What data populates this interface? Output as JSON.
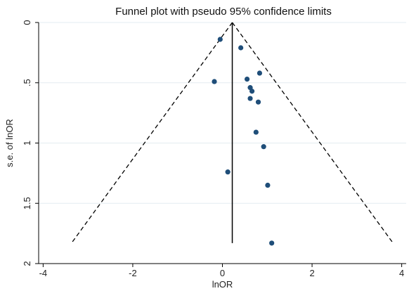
{
  "chart_data": {
    "type": "scatter",
    "title": "Funnel plot with pseudo 95% confidence limits",
    "xlabel": "lnOR",
    "ylabel": "s.e. of lnOR",
    "xlim": [
      -4.1,
      4.1
    ],
    "ylim": [
      0,
      2.0
    ],
    "y_reversed": true,
    "xticks": [
      -4,
      -2,
      0,
      2,
      4
    ],
    "xtick_labels": [
      "-4",
      "-2",
      "0",
      "2",
      "4"
    ],
    "yticks": [
      0,
      0.5,
      1,
      1.5,
      2
    ],
    "ytick_labels": [
      "0",
      ".5",
      "1",
      "1.5",
      "2"
    ],
    "grid": "horizontal",
    "legend": "none",
    "pooled_estimate": 0.22,
    "se_max": 1.83,
    "ci_multiplier": 1.96,
    "points": [
      {
        "x": -0.05,
        "y": 0.14
      },
      {
        "x": 0.41,
        "y": 0.21
      },
      {
        "x": 0.83,
        "y": 0.42
      },
      {
        "x": 0.55,
        "y": 0.47
      },
      {
        "x": -0.18,
        "y": 0.49
      },
      {
        "x": 0.62,
        "y": 0.54
      },
      {
        "x": 0.66,
        "y": 0.57
      },
      {
        "x": 0.62,
        "y": 0.63
      },
      {
        "x": 0.8,
        "y": 0.66
      },
      {
        "x": 0.75,
        "y": 0.91
      },
      {
        "x": 0.92,
        "y": 1.03
      },
      {
        "x": 0.12,
        "y": 1.24
      },
      {
        "x": 1.01,
        "y": 1.35
      },
      {
        "x": 1.1,
        "y": 1.83
      }
    ],
    "colors": {
      "marker": "#1f4e79",
      "lines": "#000000",
      "grid": "#e3ecf0",
      "axis": "#000000"
    }
  }
}
